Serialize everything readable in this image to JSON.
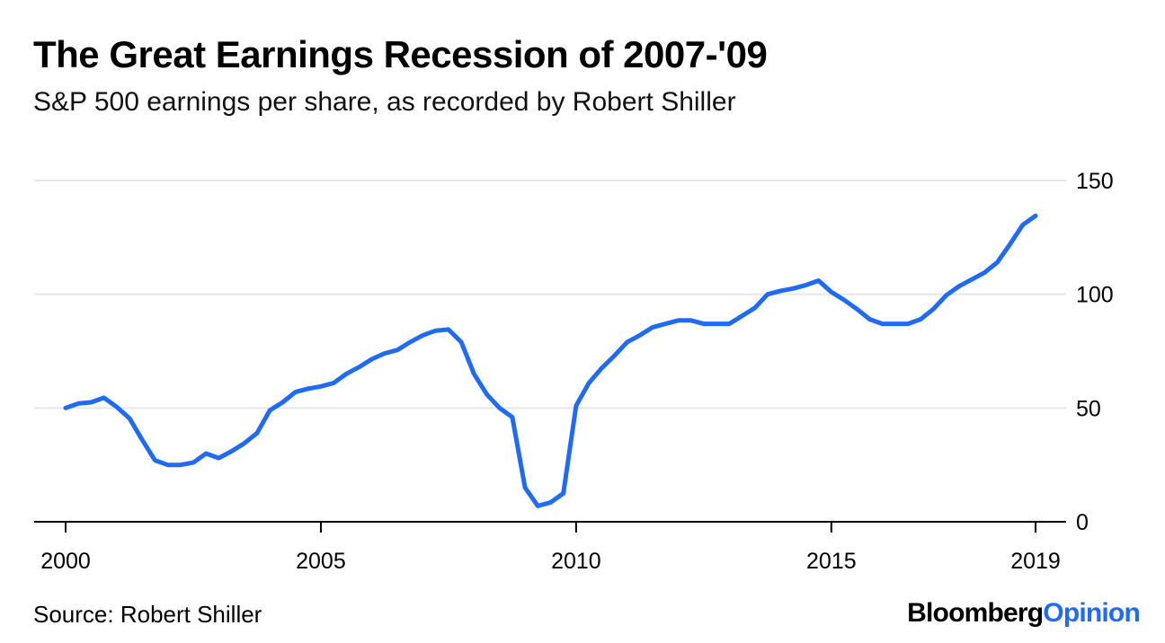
{
  "header": {
    "title": "The Great Earnings Recession of 2007-'09",
    "subtitle": "S&P 500 earnings per share, as recorded by Robert Shiller"
  },
  "footer": {
    "source": "Source: Robert Shiller",
    "brand_part1": "Bloomberg",
    "brand_part2": "Opinion"
  },
  "colors": {
    "line": "#1f6bf5",
    "brand_accent": "#1f6bf5",
    "grid": "#e6e6e6",
    "axis": "#000000"
  },
  "chart_data": {
    "type": "line",
    "title": "The Great Earnings Recession of 2007-'09",
    "subtitle": "S&P 500 earnings per share, as recorded by Robert Shiller",
    "xlabel": "",
    "ylabel": "",
    "xlim": [
      2000,
      2019
    ],
    "ylim": [
      0,
      150
    ],
    "x_ticks": [
      2000,
      2005,
      2010,
      2015,
      2019
    ],
    "y_ticks": [
      0,
      50,
      100,
      150
    ],
    "y_axis_side": "right",
    "grid": true,
    "legend": "none",
    "series": [
      {
        "x": [
          2000.0,
          2000.25,
          2000.5,
          2000.75,
          2001.0,
          2001.25,
          2001.5,
          2001.75,
          2002.0,
          2002.25,
          2002.5,
          2002.75,
          2003.0,
          2003.25,
          2003.5,
          2003.75,
          2004.0,
          2004.25,
          2004.5,
          2004.75,
          2005.0,
          2005.25,
          2005.5,
          2005.75,
          2006.0,
          2006.25,
          2006.5,
          2006.75,
          2007.0,
          2007.25,
          2007.5,
          2007.75,
          2008.0,
          2008.25,
          2008.5,
          2008.75,
          2009.0,
          2009.25,
          2009.5,
          2009.75,
          2010.0,
          2010.25,
          2010.5,
          2010.75,
          2011.0,
          2011.25,
          2011.5,
          2011.75,
          2012.0,
          2012.25,
          2012.5,
          2012.75,
          2013.0,
          2013.25,
          2013.5,
          2013.75,
          2014.0,
          2014.25,
          2014.5,
          2014.75,
          2015.0,
          2015.25,
          2015.5,
          2015.75,
          2016.0,
          2016.25,
          2016.5,
          2016.75,
          2017.0,
          2017.25,
          2017.5,
          2017.75,
          2018.0,
          2018.25,
          2018.5,
          2018.75,
          2019.0
        ],
        "y": [
          50,
          52,
          52.5,
          54.5,
          50.5,
          45.5,
          36,
          27,
          25,
          25,
          26,
          30,
          28,
          31,
          34.5,
          39,
          49,
          52.5,
          57,
          58.5,
          59.5,
          61,
          65,
          68,
          71.5,
          74,
          75.5,
          79,
          82,
          84,
          84.5,
          79,
          65,
          56,
          50,
          46,
          15,
          7,
          8.5,
          12.5,
          51,
          61,
          67.5,
          73,
          79,
          82,
          85.5,
          87,
          88.5,
          88.5,
          87,
          87,
          87,
          90.5,
          94,
          100,
          101.5,
          102.5,
          104,
          106,
          101,
          97.5,
          93.5,
          89,
          87,
          87,
          87,
          89,
          93.5,
          99.5,
          103.5,
          106.5,
          109.5,
          114,
          122,
          130.5,
          134.5
        ]
      }
    ]
  }
}
